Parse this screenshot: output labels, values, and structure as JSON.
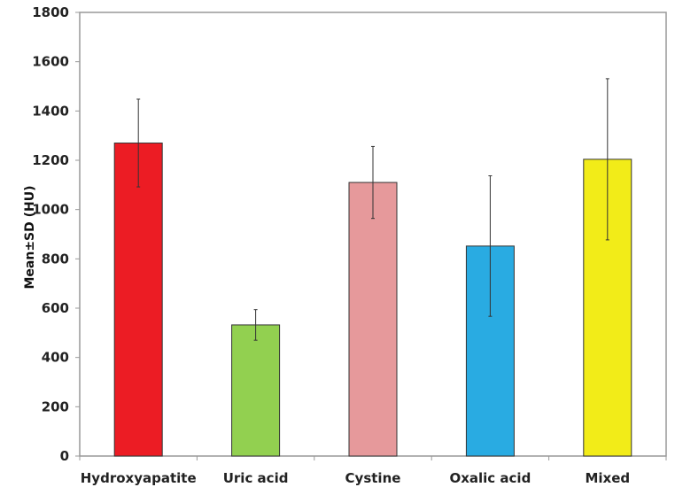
{
  "chart_data": {
    "type": "bar",
    "title": "",
    "xlabel": "",
    "ylabel": "Mean±SD (HU)",
    "ylim": [
      0,
      1800
    ],
    "yticks": [
      0,
      200,
      400,
      600,
      800,
      1000,
      1200,
      1400,
      1600,
      1800
    ],
    "grid": false,
    "legend": "none",
    "categories": [
      "Hydroxyapatite",
      "Uric acid",
      "Cystine",
      "Oxalic acid",
      "Mixed"
    ],
    "values": [
      1270,
      532,
      1110,
      852,
      1204
    ],
    "error_sd": [
      178,
      62,
      146,
      285,
      327
    ],
    "colors": [
      "#ec1c24",
      "#92d050",
      "#e6999b",
      "#29abe2",
      "#f2ec18"
    ]
  }
}
